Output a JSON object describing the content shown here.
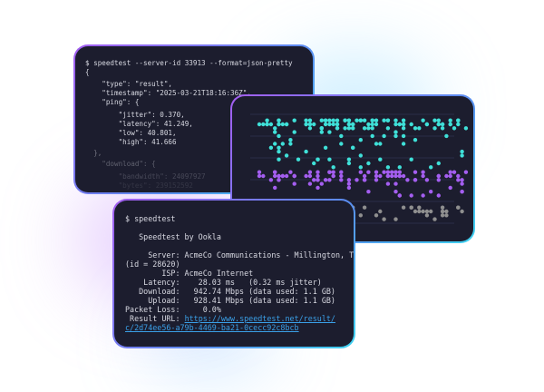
{
  "json_terminal": {
    "lines": [
      "$ speedtest --server-id 33913 --format=json-pretty",
      "{",
      "    \"type\": \"result\",",
      "    \"timestamp\": \"2025-03-21T18:16:36Z\",",
      "    \"ping\": {",
      "        \"jitter\": 0.370,",
      "        \"latency\": 41.249,",
      "        \"low\": 40.801,",
      "        \"high\": 41.666",
      "  },",
      "    \"download\": {",
      "        \"bandwidth\": 24097927",
      "        \"bytes\": 239152592"
    ]
  },
  "chart": {
    "colors": {
      "download": "#3fe0d8",
      "upload": "#a45ef0",
      "latency": "#8f8f8f",
      "grid": "#2a2d48"
    }
  },
  "text_terminal": {
    "command": "$ speedtest",
    "title": "   Speedtest by Ookla",
    "lines": [
      "     Server: AcmeCo Communications - Millington, TN",
      "(id = 28620)",
      "        ISP: AcmeCo Internet",
      "    Latency:    28.03 ms   (0.32 ms jitter)",
      "   Download:   942.74 Mbps (data used: 1.1 GB)",
      "     Upload:   928.41 Mbps (data used: 1.1 GB)",
      "Packet Loss:     0.0%"
    ],
    "result_label": " Result URL: ",
    "result_url_1": "https://www.speedtest.net/result/",
    "result_url_2": "c/2d74ee56-a79b-4469-ba21-0cecc92c8bcb"
  }
}
